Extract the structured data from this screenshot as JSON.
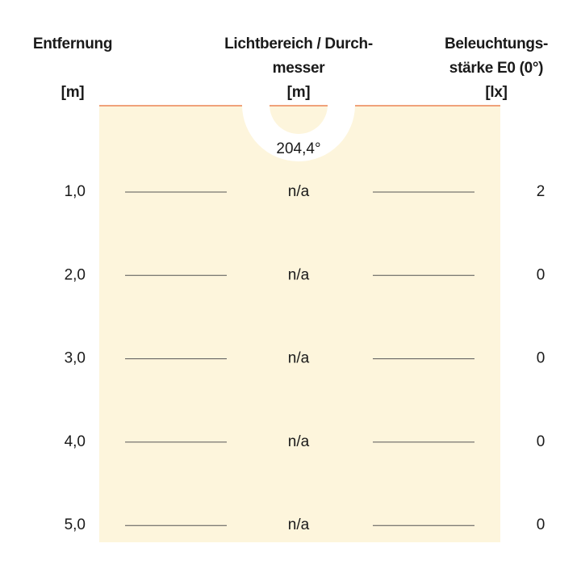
{
  "header": {
    "distance": [
      "Entfernung",
      "[m]"
    ],
    "diameter": [
      "Lichtbereich / Durch-",
      "messer",
      "[m]"
    ],
    "illuminance": [
      "Beleuchtungs-",
      "stärke E0 (0°)",
      "[lx]"
    ]
  },
  "beam_angle": "204,4°",
  "rows": [
    {
      "distance": "1,0",
      "diameter": "n/a",
      "illuminance": "2"
    },
    {
      "distance": "2,0",
      "diameter": "n/a",
      "illuminance": "0"
    },
    {
      "distance": "3,0",
      "diameter": "n/a",
      "illuminance": "0"
    },
    {
      "distance": "4,0",
      "diameter": "n/a",
      "illuminance": "0"
    },
    {
      "distance": "5,0",
      "diameter": "n/a",
      "illuminance": "0"
    }
  ]
}
